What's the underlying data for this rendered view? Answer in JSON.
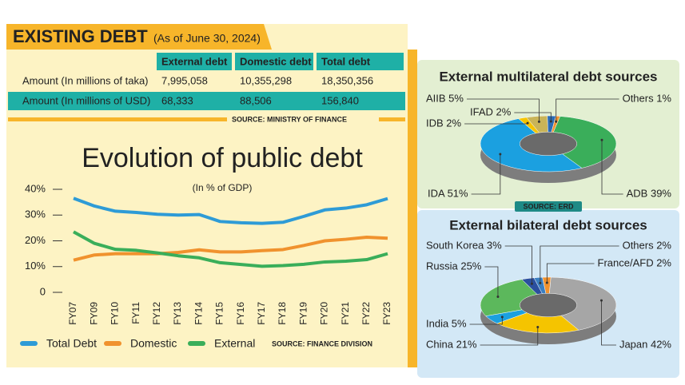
{
  "header": {
    "title": "EXISTING DEBT",
    "subtitle": "(As of June 30, 2024)"
  },
  "table": {
    "columns": [
      "External debt",
      "Domestic debt",
      "Total debt"
    ],
    "rows": [
      {
        "label": "Amount (In millions of taka)",
        "cells": [
          "7,995,058",
          "10,355,298",
          "18,350,356"
        ]
      },
      {
        "label": "Amount (In millions of USD)",
        "cells": [
          "68,333",
          "88,506",
          "156,840"
        ]
      }
    ],
    "source": "SOURCE: MINISTRY OF FINANCE"
  },
  "chart_data": [
    {
      "type": "line",
      "title": "Evolution of public debt",
      "subtitle": "(In % of GDP)",
      "categories": [
        "FY07",
        "FY09",
        "FY10",
        "FY11",
        "FY12",
        "FY13",
        "FY14",
        "FY15",
        "FY16",
        "FY17",
        "FY18",
        "FY19",
        "FY20",
        "FY21",
        "FY22",
        "FY23"
      ],
      "series": [
        {
          "name": "Total Debt",
          "color": "#2e9bd6",
          "values": [
            36.5,
            33.5,
            31.5,
            31,
            30.3,
            30,
            30.2,
            27.5,
            27,
            26.8,
            27.2,
            29.5,
            32,
            32.7,
            34,
            36.4
          ]
        },
        {
          "name": "Domestic",
          "color": "#f0922e",
          "values": [
            12.5,
            14.5,
            15,
            15,
            15,
            15.5,
            16.5,
            15.7,
            15.7,
            16.2,
            16.6,
            18.2,
            20,
            20.6,
            21.4,
            21
          ]
        },
        {
          "name": "External",
          "color": "#3aae5a",
          "values": [
            23.5,
            19,
            16.7,
            16.3,
            15.3,
            14.2,
            13.4,
            11.5,
            10.8,
            10.1,
            10.4,
            10.9,
            11.8,
            12.1,
            12.7,
            15
          ]
        }
      ],
      "ylim": [
        0,
        40
      ],
      "yticks": [
        0,
        {
          "value": 10,
          "label": "10%"
        },
        {
          "value": 20,
          "label": "20%"
        },
        {
          "value": 30,
          "label": "30%"
        },
        {
          "value": 40,
          "label": "40%"
        }
      ],
      "source": "SOURCE: FINANCE DIVISION"
    },
    {
      "type": "pie",
      "title": "External multilateral debt sources",
      "values": [
        39,
        51,
        2,
        5,
        2,
        1
      ],
      "value_labels": [
        "ADB 39%",
        "IDA 51%",
        "IDB 2%",
        "AIIB 5%",
        "IFAD 2%",
        "Others 1%"
      ],
      "colors": [
        "#3aae5a",
        "#1ba0e0",
        "#f5c400",
        "#c9b458",
        "#2b6cb5",
        "#f0922e"
      ],
      "source": "SOURCE: ERD"
    },
    {
      "type": "pie",
      "title": "External bilateral debt sources",
      "values": [
        2,
        42,
        21,
        5,
        25,
        3,
        2
      ],
      "value_labels": [
        "France/AFD 2%",
        "Japan 42%",
        "China 21%",
        "India 5%",
        "Russia 25%",
        "South Korea 3%",
        "Others 2%"
      ],
      "colors": [
        "#f0922e",
        "#a6a6a6",
        "#f5c400",
        "#1ba0e0",
        "#5cb85c",
        "#2b4f9e",
        "#3a7fc1"
      ]
    }
  ]
}
